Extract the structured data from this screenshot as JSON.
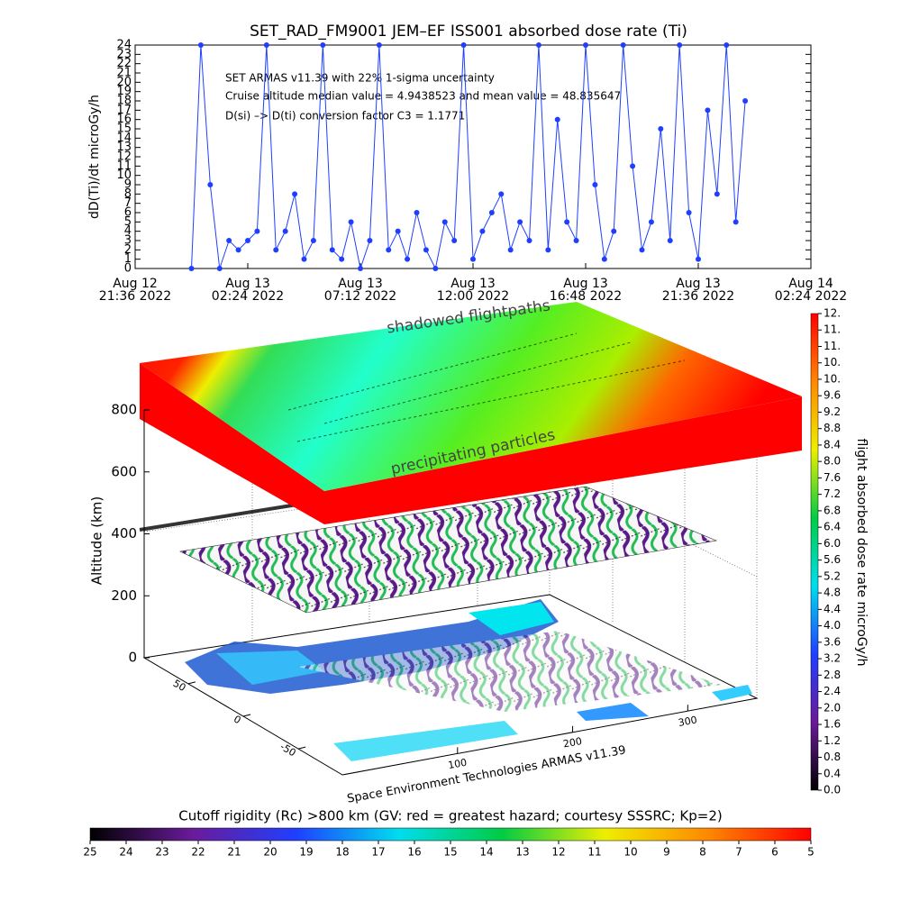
{
  "chart_data": [
    {
      "type": "line",
      "title": "SET_RAD_FM9001  JEM–EF ISS001 absorbed dose rate (Ti)",
      "y_label": "dD(Ti)/dt microGy/h",
      "annotations": [
        "SET ARMAS v11.39 with 22% 1-sigma uncertainty",
        "Cruise altitude median value = 4.9438523 and mean value = 48.835647",
        "D(si) –> D(ti) conversion factor C3 = 1.1771"
      ],
      "color": "#1f3fff",
      "x": [
        "2022-08-13 00:00",
        "2022-08-13 00:24",
        "2022-08-13 00:48",
        "2022-08-13 01:12",
        "2022-08-13 01:36",
        "2022-08-13 02:00",
        "2022-08-13 02:24",
        "2022-08-13 02:48",
        "2022-08-13 03:12",
        "2022-08-13 03:36",
        "2022-08-13 04:00",
        "2022-08-13 04:24",
        "2022-08-13 04:48",
        "2022-08-13 05:12",
        "2022-08-13 05:36",
        "2022-08-13 06:00",
        "2022-08-13 06:24",
        "2022-08-13 06:48",
        "2022-08-13 07:12",
        "2022-08-13 07:36",
        "2022-08-13 08:00",
        "2022-08-13 08:24",
        "2022-08-13 08:48",
        "2022-08-13 09:12",
        "2022-08-13 09:36",
        "2022-08-13 10:00",
        "2022-08-13 10:24",
        "2022-08-13 10:48",
        "2022-08-13 11:12",
        "2022-08-13 11:36",
        "2022-08-13 12:00",
        "2022-08-13 12:24",
        "2022-08-13 12:48",
        "2022-08-13 13:12",
        "2022-08-13 13:36",
        "2022-08-13 14:00",
        "2022-08-13 14:24",
        "2022-08-13 14:48",
        "2022-08-13 15:12",
        "2022-08-13 15:36",
        "2022-08-13 16:00",
        "2022-08-13 16:24",
        "2022-08-13 16:48",
        "2022-08-13 17:12",
        "2022-08-13 17:36",
        "2022-08-13 18:00",
        "2022-08-13 18:24",
        "2022-08-13 18:48",
        "2022-08-13 19:12",
        "2022-08-13 19:36",
        "2022-08-13 20:00",
        "2022-08-13 20:24",
        "2022-08-13 20:48",
        "2022-08-13 21:12",
        "2022-08-13 21:36",
        "2022-08-13 22:00",
        "2022-08-13 22:24",
        "2022-08-13 22:48",
        "2022-08-13 23:12",
        "2022-08-13 23:36"
      ],
      "values": [
        0,
        24,
        9,
        0,
        3,
        2,
        3,
        4,
        24,
        2,
        4,
        8,
        1,
        3,
        24,
        2,
        1,
        5,
        0,
        3,
        24,
        2,
        4,
        1,
        6,
        2,
        0,
        5,
        3,
        24,
        1,
        4,
        6,
        8,
        2,
        5,
        3,
        24,
        2,
        16,
        5,
        3,
        24,
        9,
        1,
        4,
        24,
        11,
        2,
        5,
        15,
        3,
        24,
        6,
        1,
        17,
        8,
        24,
        5,
        18
      ],
      "xlim": [
        "2022-08-12 21:36",
        "2022-08-14 02:24"
      ],
      "xticks": [
        {
          "value": "2022-08-12 21:36",
          "label": "Aug 12\n21:36 2022"
        },
        {
          "value": "2022-08-13 02:24",
          "label": "Aug 13\n02:24 2022"
        },
        {
          "value": "2022-08-13 07:12",
          "label": "Aug 13\n07:12 2022"
        },
        {
          "value": "2022-08-13 12:00",
          "label": "Aug 13\n12:00 2022"
        },
        {
          "value": "2022-08-13 16:48",
          "label": "Aug 13\n16:48 2022"
        },
        {
          "value": "2022-08-13 21:36",
          "label": "Aug 13\n21:36 2022"
        },
        {
          "value": "2022-08-14 02:24",
          "label": "Aug 14\n02:24 2022"
        }
      ],
      "ylim": [
        0,
        24
      ],
      "yticks": [
        0,
        1,
        2,
        3,
        4,
        5,
        6,
        7,
        8,
        9,
        10,
        11,
        12,
        13,
        14,
        15,
        16,
        17,
        18,
        19,
        20,
        21,
        22,
        23,
        24
      ]
    },
    {
      "type": "surface3d",
      "z_label": "Altitude (km)",
      "zlim": [
        0,
        800
      ],
      "zticks": [
        0,
        200,
        400,
        600,
        800
      ],
      "latlim": [
        90,
        -90
      ],
      "latticks": [
        50,
        0,
        -50
      ],
      "lonlim": [
        0,
        360
      ],
      "lonticks": [
        100,
        200,
        300
      ],
      "annotations": [
        "shadowed flightpaths",
        "precipitating particles",
        "Space Environment Technologies ARMAS v11.39"
      ]
    },
    {
      "type": "colorbar",
      "label": "flight absorbed dose rate microGy/h",
      "colors": [
        "#000000",
        "#6a1b9a",
        "#1f3fff",
        "#00ddee",
        "#00cc44",
        "#eeee00",
        "#ff8800",
        "#ff0000"
      ],
      "lim": [
        0,
        11.6
      ],
      "ticks": [
        {
          "value": 0,
          "label": "0.0"
        },
        0.4,
        0.8,
        1.2,
        1.6,
        {
          "value": 2,
          "label": "2.0"
        },
        2.4,
        2.8,
        3.2,
        3.6,
        {
          "value": 4,
          "label": "4.0"
        },
        4.4,
        4.8,
        5.2,
        5.6,
        {
          "value": 6,
          "label": "6.0"
        },
        6.4,
        6.8,
        7.2,
        7.6,
        {
          "value": 8,
          "label": "8.0"
        },
        8.4,
        8.8,
        9.2,
        9.6,
        {
          "value": 10,
          "label": "10."
        },
        {
          "value": 10.4,
          "label": "10."
        },
        {
          "value": 10.8,
          "label": "11."
        },
        {
          "value": 11.2,
          "label": "11."
        },
        {
          "value": 11.6,
          "label": "12."
        }
      ]
    },
    {
      "type": "colorbar-h",
      "title": "Cutoff rigidity (Rc) >800 km (GV: red = greatest hazard; courtesy SSSRC; Kp=2)",
      "colors": [
        "#000000",
        "#6a1b9a",
        "#1f3fff",
        "#00ddee",
        "#00cc44",
        "#eeee00",
        "#ff8800",
        "#ff0000"
      ],
      "lim": [
        25,
        5
      ],
      "ticks": [
        25,
        24,
        23,
        22,
        21,
        20,
        19,
        18,
        17,
        16,
        15,
        14,
        13,
        12,
        11,
        10,
        9,
        8,
        7,
        6,
        5
      ]
    }
  ]
}
